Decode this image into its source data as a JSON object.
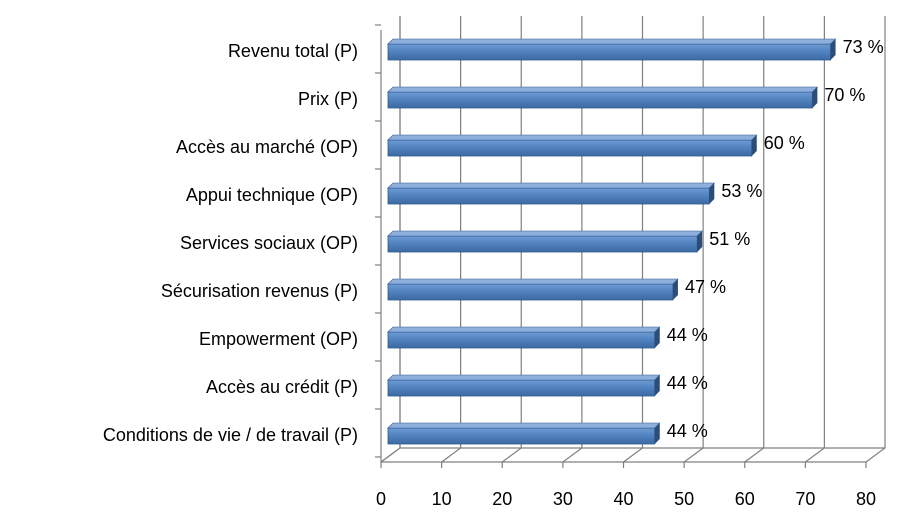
{
  "chart_data": {
    "type": "bar",
    "orientation": "horizontal",
    "categories": [
      "Revenu total (P)",
      "Prix (P)",
      "Accès au marché (OP)",
      "Appui technique (OP)",
      "Services sociaux (OP)",
      "Sécurisation revenus (P)",
      "Empowerment (OP)",
      "Accès au crédit (P)",
      "Conditions de vie / de travail (P)"
    ],
    "values": [
      73,
      70,
      60,
      53,
      51,
      47,
      44,
      44,
      44
    ],
    "value_labels": [
      "73 %",
      "70 %",
      "60 %",
      "53 %",
      "51 %",
      "47 %",
      "44 %",
      "44 %",
      "44 %"
    ],
    "color": "#4f81bd",
    "xlim": [
      0,
      80
    ],
    "xticks": [
      0,
      10,
      20,
      30,
      40,
      50,
      60,
      70,
      80
    ],
    "grid": true
  }
}
